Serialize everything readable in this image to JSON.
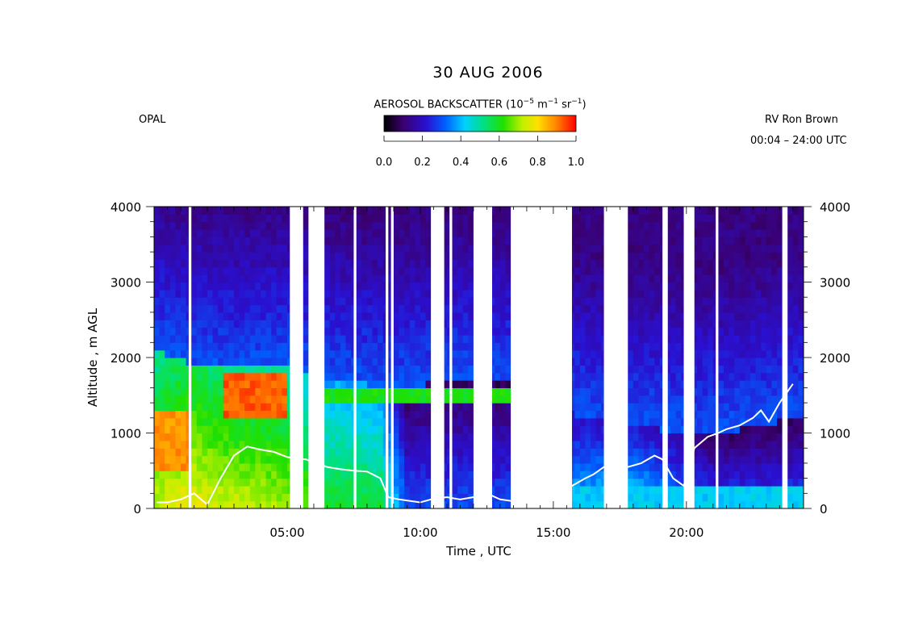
{
  "title": "30 AUG 2006",
  "left_label": "OPAL",
  "right_label": "RV Ron Brown",
  "time_range": "00:04 – 24:00 UTC",
  "colorbar": {
    "title_prefix": "AEROSOL BACKSCATTER (10",
    "exp1": "−5",
    "mid1": " m",
    "exp2": "−1",
    "mid2": " sr",
    "exp3": "−1",
    "suffix": ")",
    "ticks": [
      "0.0",
      "0.2",
      "0.4",
      "0.6",
      "0.8",
      "1.0"
    ],
    "range": [
      0,
      1
    ]
  },
  "chart_data": {
    "type": "heatmap",
    "title": "30 AUG 2006",
    "xlabel": "Time , UTC",
    "ylabel": "Altitude , m AGL",
    "xlim_hours": [
      0,
      24.4
    ],
    "ylim": [
      0,
      4000
    ],
    "x_ticks": [
      {
        "hour": 5,
        "label": "05:00"
      },
      {
        "hour": 10,
        "label": "10:00"
      },
      {
        "hour": 15,
        "label": "15:00"
      },
      {
        "hour": 20,
        "label": "20:00"
      }
    ],
    "y_ticks": [
      0,
      1000,
      2000,
      3000,
      4000
    ],
    "y_tick_labels": [
      "0",
      "1000",
      "2000",
      "3000",
      "4000"
    ],
    "data_gaps_hours": [
      [
        1.3,
        1.4
      ],
      [
        5.1,
        5.6
      ],
      [
        5.8,
        6.4
      ],
      [
        7.5,
        7.6
      ],
      [
        8.7,
        8.8
      ],
      [
        8.9,
        9.0
      ],
      [
        10.4,
        10.9
      ],
      [
        11.1,
        11.2
      ],
      [
        12.0,
        12.7
      ],
      [
        13.4,
        15.7
      ],
      [
        16.9,
        17.8
      ],
      [
        19.1,
        19.3
      ],
      [
        19.9,
        20.3
      ],
      [
        21.1,
        21.2
      ],
      [
        23.6,
        23.8
      ]
    ],
    "mixing_layer_height": {
      "x_hours": [
        0.1,
        0.5,
        1.0,
        1.5,
        2.0,
        2.5,
        3.0,
        3.5,
        4.0,
        4.5,
        5.0,
        5.7,
        6.5,
        7.0,
        7.5,
        8.0,
        8.5,
        8.8,
        9.2,
        9.6,
        10.0,
        10.4,
        11.0,
        11.5,
        12.0,
        12.5,
        13.0,
        13.4,
        15.7,
        16.2,
        16.5,
        16.9,
        17.8,
        18.3,
        18.8,
        19.1,
        19.5,
        19.9,
        20.3,
        20.8,
        21.2,
        21.5,
        22.0,
        22.5,
        22.8,
        23.1,
        23.5,
        24.0
      ],
      "y_m": [
        80,
        80,
        120,
        200,
        50,
        400,
        700,
        820,
        780,
        750,
        680,
        650,
        550,
        520,
        500,
        490,
        400,
        150,
        120,
        100,
        80,
        120,
        150,
        120,
        150,
        200,
        120,
        100,
        300,
        400,
        450,
        550,
        550,
        600,
        700,
        650,
        400,
        300,
        800,
        950,
        1000,
        1050,
        1100,
        1200,
        1300,
        1150,
        1400,
        1650
      ]
    }
  }
}
